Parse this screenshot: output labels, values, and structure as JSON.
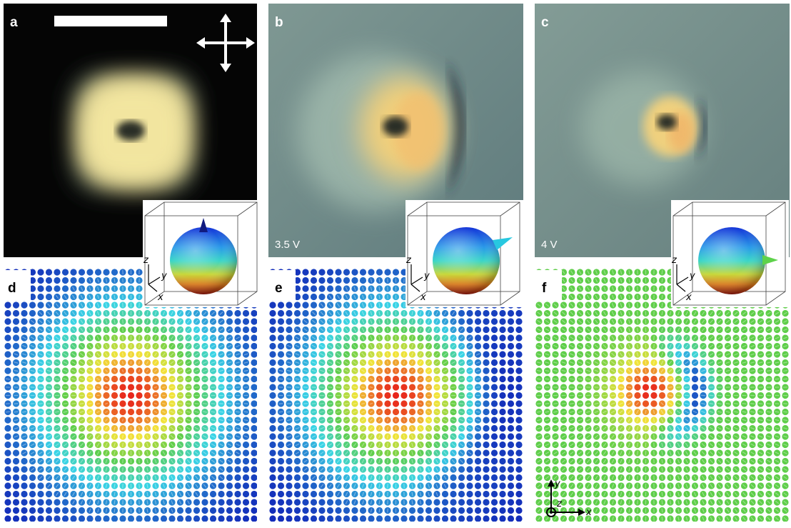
{
  "panels": {
    "a": {
      "label": "a",
      "voltage": ""
    },
    "b": {
      "label": "b",
      "voltage": "3.5 V"
    },
    "c": {
      "label": "c",
      "voltage": "4 V"
    },
    "d": {
      "label": "d"
    },
    "e": {
      "label": "e"
    },
    "f": {
      "label": "f"
    }
  },
  "axes": {
    "x": "x",
    "y": "y",
    "z": "z"
  },
  "colors": {
    "photo_a_bg": "#050505",
    "photo_bc_bg": "#6f8a8a",
    "ring_yellow": "#f3e6a0",
    "lattice_blue": "#1226b8",
    "lattice_cyan": "#3ad4e6",
    "lattice_green": "#5fce4a",
    "lattice_yellow": "#f2e43a",
    "lattice_red": "#e8261c"
  },
  "icons": [
    "scale-bar",
    "polarizer-cross-icon",
    "sphere-inset",
    "axis-triad-icon"
  ]
}
